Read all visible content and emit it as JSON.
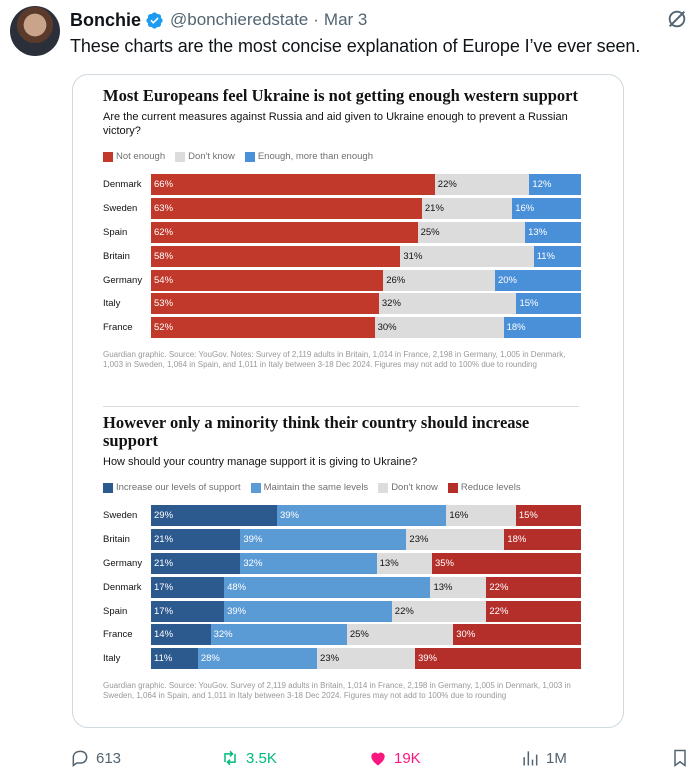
{
  "tweet": {
    "author_name": "Bonchie",
    "handle": "@bonchieredstate",
    "separator": "·",
    "date": "Mar 3",
    "text": "These charts are the most concise explanation of Europe I’ve ever seen."
  },
  "colors": {
    "not_enough": "#c0392b",
    "dont_know": "#dcdcdc",
    "enough": "#4a90d9",
    "increase": "#2d5a8e",
    "maintain": "#5b9bd5",
    "reduce": "#b52f2a",
    "verified": "#1d9bf0",
    "like": "#f91880",
    "retweet": "#00ba7c"
  },
  "chart_data": [
    {
      "type": "bar",
      "orientation": "horizontal",
      "stacked": true,
      "title": "Most Europeans feel Ukraine is not getting enough western support",
      "subtitle": "Are the current measures against Russia and aid given to Ukraine enough to prevent a Russian victory?",
      "legend_placement": "top-left",
      "categories": [
        "Denmark",
        "Sweden",
        "Spain",
        "Britain",
        "Germany",
        "Italy",
        "France"
      ],
      "series": [
        {
          "name": "Not enough",
          "color": "#c0392b",
          "values": [
            66,
            63,
            62,
            58,
            54,
            53,
            52
          ]
        },
        {
          "name": "Don't know",
          "color": "#dcdcdc",
          "values": [
            22,
            21,
            25,
            31,
            26,
            32,
            30
          ]
        },
        {
          "name": "Enough, more than enough",
          "color": "#4a90d9",
          "values": [
            12,
            16,
            13,
            11,
            20,
            15,
            18
          ]
        }
      ],
      "note": "Guardian graphic. Source: YouGov. Notes: Survey of 2,119 adults in Britain, 1,014 in France, 2,198 in Germany, 1,005 in Denmark, 1,003 in Sweden, 1,064 in Spain, and 1,011 in Italy between 3-18 Dec 2024. Figures may not add to 100% due to rounding"
    },
    {
      "type": "bar",
      "orientation": "horizontal",
      "stacked": true,
      "title": "However only a minority think their country should increase support",
      "subtitle": "How should your country manage support it is giving to Ukraine?",
      "legend_placement": "top-left",
      "categories": [
        "Sweden",
        "Britain",
        "Germany",
        "Denmark",
        "Spain",
        "France",
        "Italy"
      ],
      "series": [
        {
          "name": "Increase our levels of support",
          "color": "#2d5a8e",
          "values": [
            29,
            21,
            21,
            17,
            17,
            14,
            11
          ]
        },
        {
          "name": "Maintain the same levels",
          "color": "#5b9bd5",
          "values": [
            39,
            39,
            32,
            48,
            39,
            32,
            28
          ]
        },
        {
          "name": "Don't know",
          "color": "#dcdcdc",
          "values": [
            16,
            23,
            13,
            13,
            22,
            25,
            23
          ]
        },
        {
          "name": "Reduce levels",
          "color": "#b52f2a",
          "values": [
            15,
            18,
            35,
            22,
            22,
            30,
            39
          ]
        }
      ],
      "note": "Guardian graphic. Source: YouGov. Survey of 2,119 adults in Britain, 1,014 in France, 2,198 in Germany, 1,005 in Denmark, 1,003 in Sweden, 1,064 in Spain, and 1,011 in Italy between 3-18 Dec 2024. Figures may not add to 100% due to rounding"
    }
  ],
  "actions": {
    "replies": "613",
    "retweets": "3.5K",
    "likes": "19K",
    "views": "1M"
  },
  "icons": {
    "verified": "verified-badge-icon",
    "grok": "grok-icon",
    "reply": "reply-icon",
    "retweet": "retweet-icon",
    "like": "heart-icon",
    "views": "views-icon",
    "bookmark": "bookmark-icon"
  }
}
